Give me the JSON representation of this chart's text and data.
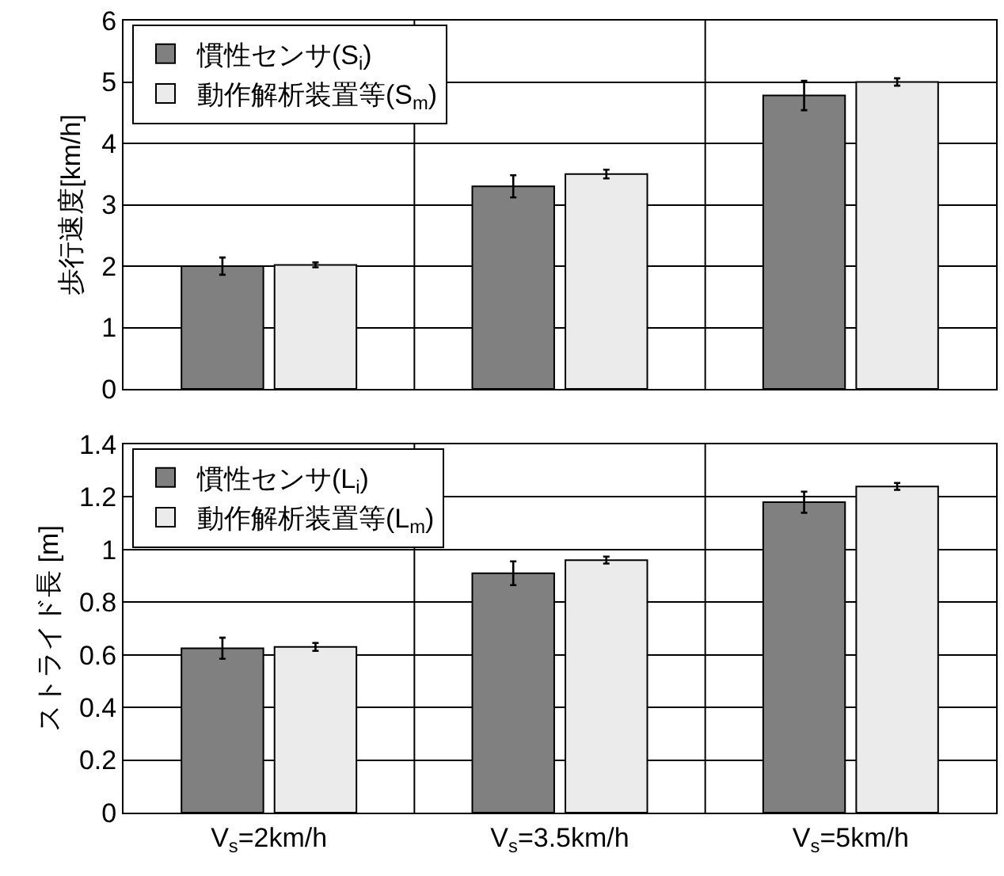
{
  "chart_data": [
    {
      "type": "bar",
      "ylabel": "歩行速度[km/h]",
      "categories": [
        null,
        null,
        null
      ],
      "ylim": [
        0,
        6
      ],
      "yticks": [
        0,
        1,
        2,
        3,
        4,
        5,
        6
      ],
      "grid": true,
      "legend": "top left",
      "tick_labels": "y",
      "series": [
        {
          "name": "慣性センサ(S$_{i}$)",
          "color": "#808080",
          "values": [
            2.0,
            3.3,
            4.78
          ],
          "errors": [
            0.14,
            0.18,
            0.24
          ]
        },
        {
          "name": "動作解析装置等(S$_{m}$)",
          "color": "#ebebeb",
          "values": [
            2.02,
            3.5,
            5.0
          ],
          "errors": [
            0.04,
            0.07,
            0.06
          ]
        }
      ]
    },
    {
      "type": "bar",
      "ylabel": "ストライド長 [m]",
      "categories": [
        "V$_{s}$=2km/h",
        "V$_{s}$=3.5km/h",
        "V$_{s}$=5km/h"
      ],
      "ylim": [
        0,
        1.4
      ],
      "yticks": [
        0,
        0.2,
        0.4,
        0.6,
        0.8,
        1,
        1.2,
        1.4
      ],
      "grid": true,
      "legend": "top left",
      "series": [
        {
          "name": "慣性センサ(L$_{i}$)",
          "color": "#808080",
          "values": [
            0.625,
            0.91,
            1.18
          ],
          "errors": [
            0.04,
            0.045,
            0.04
          ]
        },
        {
          "name": "動作解析装置等(L$_{m}$)",
          "color": "#ebebeb",
          "values": [
            0.63,
            0.96,
            1.24
          ],
          "errors": [
            0.015,
            0.013,
            0.013
          ]
        }
      ]
    }
  ]
}
